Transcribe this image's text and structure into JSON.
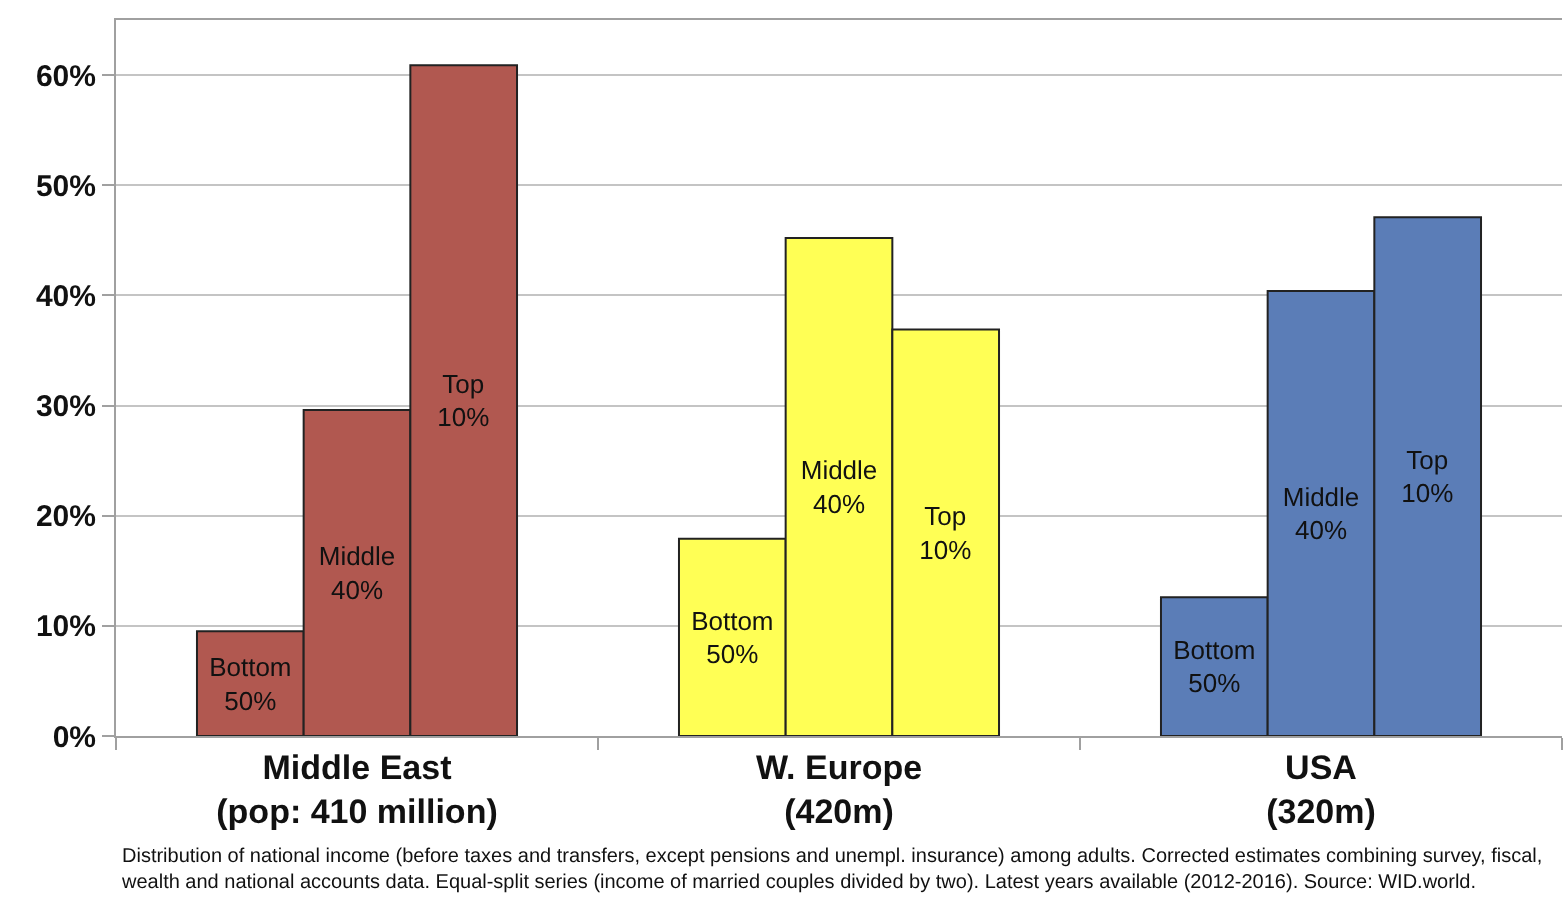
{
  "chart_data": {
    "type": "bar",
    "categories": [
      "Middle East\n(pop: 410 million)",
      "W. Europe\n(420m)",
      "USA\n(320m)"
    ],
    "series": [
      {
        "name": "Bottom\n50%",
        "colors": [
          "#b15850",
          "#ffff55",
          "#5b7db7"
        ],
        "values": [
          9.5,
          17.9,
          12.6
        ]
      },
      {
        "name": "Middle\n40%",
        "colors": [
          "#b15850",
          "#ffff55",
          "#5b7db7"
        ],
        "values": [
          29.6,
          45.2,
          40.4
        ]
      },
      {
        "name": "Top\n10%",
        "colors": [
          "#b15850",
          "#ffff55",
          "#5b7db7"
        ],
        "values": [
          60.9,
          36.9,
          47.1
        ]
      }
    ],
    "ylim": [
      0,
      65
    ],
    "yticks": [
      {
        "value": 0,
        "label": "0%"
      },
      {
        "value": 10,
        "label": "10%"
      },
      {
        "value": 20,
        "label": "20%"
      },
      {
        "value": 30,
        "label": "30%"
      },
      {
        "value": 40,
        "label": "40%"
      },
      {
        "value": 50,
        "label": "50%"
      },
      {
        "value": 60,
        "label": "60%"
      }
    ],
    "grid": "y",
    "legend": false,
    "annotations": [
      "Distribution of national income (before taxes and transfers, except pensions and unempl. insurance) among adults. Corrected estimates combining survey, fiscal,\nwealth and national accounts data. Equal-split series (income of married couples divided by two). Latest years available (2012-2016). Source: WID.world."
    ]
  }
}
